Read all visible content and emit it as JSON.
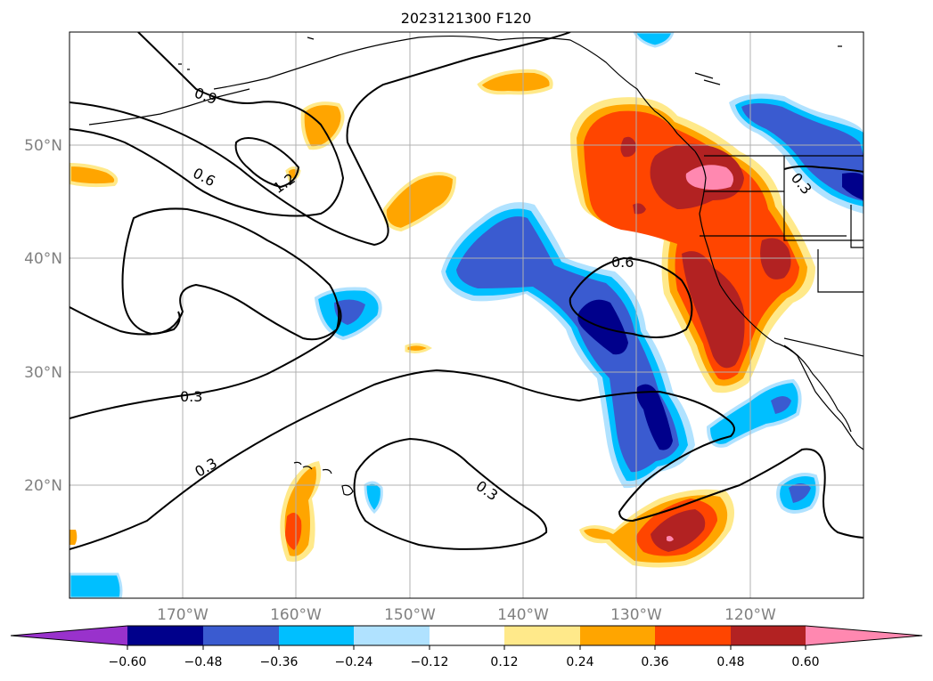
{
  "title": "2023121300 F120",
  "lat_labels": [
    "50°N",
    "40°N",
    "30°N",
    "20°N"
  ],
  "lon_labels": [
    "170°W",
    "160°W",
    "150°W",
    "140°W",
    "130°W",
    "120°W"
  ],
  "contour_labels": [
    "0.9",
    "0.6",
    "1.2",
    "0.6",
    "0.3",
    "0.3",
    "0.3",
    "0.3"
  ],
  "colorbar": {
    "ticks": [
      "−0.60",
      "−0.48",
      "−0.36",
      "−0.24",
      "−0.12",
      "0.12",
      "0.24",
      "0.36",
      "0.48",
      "0.60"
    ],
    "colors": [
      "#9932cc",
      "#00008b",
      "#3a5bd0",
      "#00bfff",
      "#b0e2ff",
      "#ffffff",
      "#ffe98a",
      "#ffa500",
      "#ff4500",
      "#b22222",
      "#ff88b0"
    ]
  },
  "colors": {
    "grid": "#b0b0b0",
    "coast": "#000000"
  }
}
